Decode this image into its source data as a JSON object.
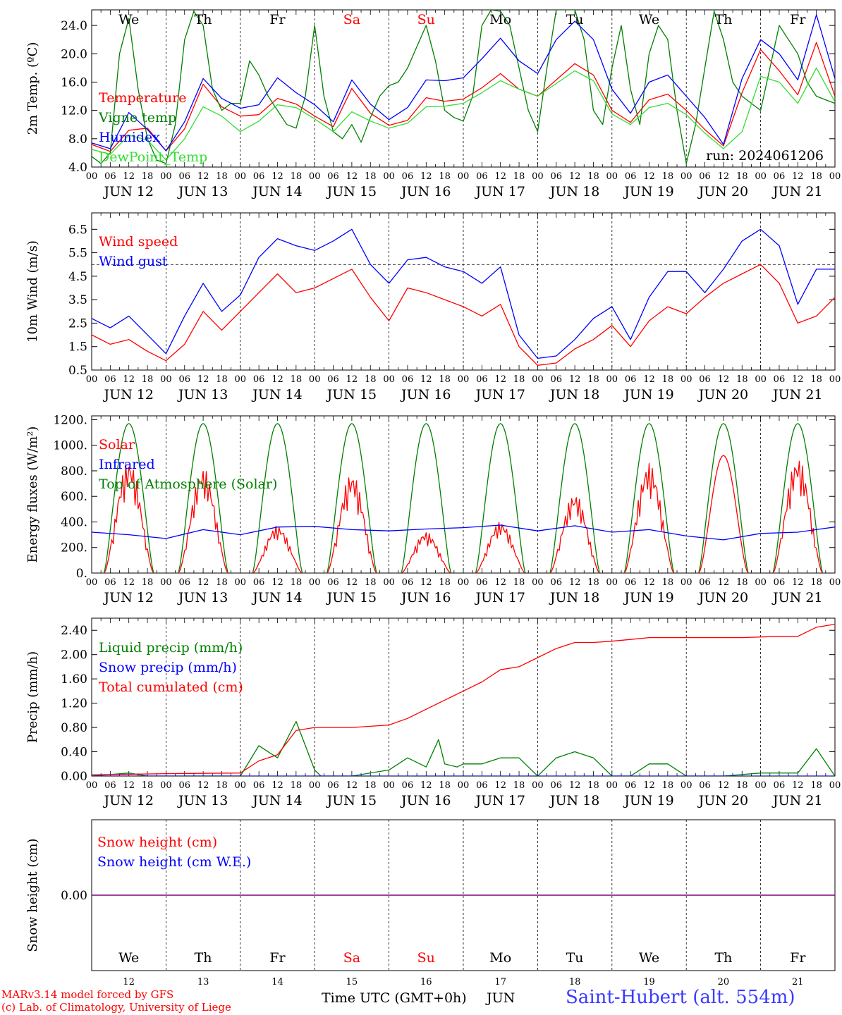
{
  "run_label": "run: 2024061206",
  "days": [
    "We",
    "Th",
    "Fr",
    "Sa",
    "Su",
    "Mo",
    "Tu",
    "We",
    "Th",
    "Fr"
  ],
  "weekend_indices": [
    3,
    4
  ],
  "date_labels": [
    "JUN 12",
    "JUN 13",
    "JUN 14",
    "JUN 15",
    "JUN 16",
    "JUN 17",
    "JUN 18",
    "JUN 19",
    "JUN 20",
    "JUN 21"
  ],
  "hour_ticks": [
    "00",
    "06",
    "12",
    "18"
  ],
  "day_numbers": [
    "12",
    "13",
    "14",
    "15",
    "16",
    "17",
    "18",
    "19",
    "20",
    "21"
  ],
  "colors": {
    "red": "#ff0000",
    "green": "#008000",
    "blue": "#0000ff",
    "lightgreen": "#33dd33",
    "purple": "#800080"
  },
  "footer": {
    "model": "MARv3.14 model forced by GFS",
    "credit": "(c) Lab. of Climatology, University of Liege",
    "xlabel": "Time UTC (GMT+0h)",
    "month": "JUN",
    "station": "Saint-Hubert (alt. 554m)"
  },
  "chart_data": [
    {
      "type": "line",
      "ylabel": "2m Temp. (ºC)",
      "yticks": [
        "4.0",
        "8.0",
        "12.0",
        "16.0",
        "20.0",
        "24.0"
      ],
      "ylim": [
        4,
        26.2
      ],
      "x_unit": "hours from 2024-06-12 00 UTC",
      "series": [
        {
          "name": "Temperature",
          "color": "red",
          "x": [
            0,
            6,
            12,
            18,
            24,
            30,
            36,
            42,
            48,
            54,
            60,
            66,
            72,
            78,
            84,
            90,
            96,
            102,
            108,
            114,
            120,
            126,
            132,
            138,
            144,
            150,
            156,
            162,
            168,
            174,
            180,
            186,
            192,
            198,
            204,
            210,
            216,
            222,
            228,
            234,
            240
          ],
          "y": [
            7.2,
            6.2,
            9.2,
            9.5,
            6.3,
            9.4,
            15.7,
            12.5,
            11.2,
            11.4,
            13.7,
            12.9,
            11.2,
            9.7,
            15.1,
            11.6,
            9.9,
            10.6,
            13.8,
            13.3,
            13.6,
            15.2,
            17.2,
            15.0,
            14.0,
            16.3,
            18.6,
            17.0,
            12.0,
            10.3,
            13.5,
            14.3,
            12.0,
            9.3,
            7.0,
            14.5,
            20.6,
            17.6,
            14.2,
            21.6,
            14.0
          ]
        },
        {
          "name": "Vigne temp",
          "color": "green",
          "x": [
            0,
            3,
            6,
            9,
            12,
            15,
            18,
            21,
            24,
            27,
            30,
            33,
            36,
            39,
            42,
            45,
            48,
            51,
            54,
            57,
            60,
            63,
            66,
            69,
            72,
            75,
            78,
            81,
            84,
            87,
            90,
            93,
            96,
            99,
            102,
            105,
            108,
            111,
            114,
            117,
            120,
            123,
            126,
            129,
            132,
            135,
            138,
            141,
            144,
            147,
            150,
            153,
            156,
            159,
            162,
            165,
            168,
            171,
            174,
            177,
            180,
            183,
            186,
            189,
            192,
            195,
            198,
            201,
            204,
            207,
            210,
            213,
            216,
            219,
            222,
            225,
            228,
            231,
            234,
            237,
            240
          ],
          "y": [
            5.5,
            4.5,
            6.0,
            20.0,
            25.0,
            15.0,
            8.0,
            5.0,
            4.5,
            10.0,
            22.0,
            26.0,
            24.0,
            15.0,
            12.0,
            13.0,
            13.0,
            19.0,
            17.0,
            14.0,
            12.0,
            10.0,
            9.5,
            14.0,
            24.0,
            14.0,
            9.0,
            8.0,
            10.0,
            7.5,
            11.0,
            14.0,
            15.5,
            16.0,
            18.0,
            21.0,
            24.0,
            19.0,
            12.0,
            11.0,
            10.5,
            14.0,
            24.0,
            26.2,
            26.0,
            24.0,
            18.0,
            12.0,
            9.0,
            18.0,
            26.2,
            26.2,
            26.2,
            22.0,
            12.0,
            10.0,
            18.0,
            24.0,
            15.0,
            10.0,
            20.0,
            24.0,
            22.0,
            12.0,
            4.5,
            10.0,
            18.0,
            26.0,
            22.0,
            16.0,
            14.0,
            13.0,
            12.0,
            18.0,
            24.0,
            22.0,
            20.0,
            16.0,
            14.0,
            13.5,
            13.0
          ]
        },
        {
          "name": "Humidex",
          "color": "blue",
          "x": [
            0,
            6,
            12,
            18,
            24,
            30,
            36,
            42,
            48,
            54,
            60,
            66,
            72,
            78,
            84,
            90,
            96,
            102,
            108,
            114,
            120,
            126,
            132,
            138,
            144,
            150,
            156,
            162,
            168,
            174,
            180,
            186,
            192,
            198,
            204,
            210,
            216,
            222,
            228,
            234,
            240
          ],
          "y": [
            7.4,
            6.6,
            11.7,
            9.3,
            6.3,
            10.4,
            16.5,
            13.7,
            12.3,
            12.8,
            16.6,
            14.5,
            12.8,
            10.4,
            16.3,
            12.9,
            10.7,
            12.4,
            16.3,
            16.2,
            16.6,
            19.3,
            22.2,
            19.0,
            17.2,
            22.0,
            24.6,
            22.0,
            15.0,
            11.6,
            16.0,
            17.0,
            14.0,
            11.0,
            7.2,
            16.5,
            22.0,
            20.0,
            16.3,
            25.5,
            16.5
          ]
        },
        {
          "name": "DewPoint_Temp",
          "color": "lightgreen",
          "x": [
            0,
            6,
            12,
            18,
            24,
            30,
            36,
            42,
            48,
            54,
            60,
            66,
            72,
            78,
            84,
            90,
            96,
            102,
            108,
            114,
            120,
            126,
            132,
            138,
            144,
            150,
            156,
            162,
            168,
            174,
            180,
            186,
            192,
            198,
            204,
            210,
            216,
            222,
            228,
            234,
            240
          ],
          "y": [
            6.5,
            5.8,
            8.5,
            7.8,
            5.0,
            8.0,
            12.5,
            11.2,
            9.0,
            10.5,
            12.8,
            12.4,
            10.8,
            9.0,
            11.8,
            10.5,
            9.5,
            10.2,
            12.5,
            12.6,
            13.0,
            14.5,
            16.2,
            15.0,
            14.0,
            15.8,
            17.6,
            16.2,
            11.5,
            10.0,
            12.4,
            13.0,
            11.4,
            8.8,
            6.6,
            9.0,
            16.8,
            16.0,
            13.0,
            18.0,
            13.2
          ]
        }
      ]
    },
    {
      "type": "line",
      "ylabel": "10m Wind (m/s)",
      "yticks": [
        "0.5",
        "1.5",
        "2.5",
        "3.5",
        "4.5",
        "5.5",
        "6.5"
      ],
      "ylim": [
        0.5,
        7.2
      ],
      "reference_line": 5.0,
      "series": [
        {
          "name": "Wind speed",
          "color": "red",
          "x": [
            0,
            6,
            12,
            18,
            24,
            30,
            36,
            42,
            48,
            54,
            60,
            66,
            72,
            78,
            84,
            90,
            96,
            102,
            108,
            114,
            120,
            126,
            132,
            138,
            144,
            150,
            156,
            162,
            168,
            174,
            180,
            186,
            192,
            198,
            204,
            210,
            216,
            222,
            228,
            234,
            240
          ],
          "y": [
            2.0,
            1.6,
            1.8,
            1.3,
            0.9,
            1.6,
            3.0,
            2.2,
            3.0,
            3.8,
            4.6,
            3.8,
            4.0,
            4.4,
            4.8,
            3.6,
            2.6,
            4.0,
            3.8,
            3.5,
            3.2,
            2.8,
            3.3,
            1.5,
            0.7,
            0.8,
            1.4,
            1.8,
            2.4,
            1.5,
            2.6,
            3.2,
            2.9,
            3.6,
            4.2,
            4.6,
            5.0,
            4.2,
            2.5,
            2.8,
            3.6
          ]
        },
        {
          "name": "Wind gust",
          "color": "blue",
          "x": [
            0,
            6,
            12,
            18,
            24,
            30,
            36,
            42,
            48,
            54,
            60,
            66,
            72,
            78,
            84,
            90,
            96,
            102,
            108,
            114,
            120,
            126,
            132,
            138,
            144,
            150,
            156,
            162,
            168,
            174,
            180,
            186,
            192,
            198,
            204,
            210,
            216,
            222,
            228,
            234,
            240
          ],
          "y": [
            2.7,
            2.3,
            2.8,
            2.0,
            1.2,
            2.8,
            4.2,
            3.0,
            3.7,
            5.3,
            6.1,
            5.8,
            5.6,
            6.0,
            6.5,
            5.0,
            4.2,
            5.2,
            5.3,
            4.9,
            4.7,
            4.2,
            4.9,
            2.0,
            1.0,
            1.1,
            1.8,
            2.7,
            3.2,
            1.8,
            3.6,
            4.7,
            4.7,
            3.8,
            4.8,
            6.0,
            6.5,
            5.8,
            3.3,
            4.8,
            4.8
          ]
        }
      ]
    },
    {
      "type": "line",
      "ylabel": "Energy fluxes (W/m²)",
      "yticks": [
        "0.",
        "200.",
        "400.",
        "600.",
        "800.",
        "1000.",
        "1200."
      ],
      "ylim": [
        0,
        1230
      ],
      "series": [
        {
          "name": "Solar",
          "color": "red",
          "daily_peaks": [
            880,
            820,
            370,
            780,
            320,
            400,
            620,
            860,
            920,
            900
          ]
        },
        {
          "name": "Infrared",
          "color": "blue",
          "x": [
            0,
            12,
            24,
            36,
            48,
            60,
            72,
            84,
            96,
            108,
            120,
            132,
            144,
            156,
            168,
            180,
            192,
            204,
            216,
            228,
            240
          ],
          "y": [
            320,
            300,
            270,
            340,
            300,
            360,
            365,
            340,
            330,
            345,
            355,
            375,
            330,
            370,
            320,
            340,
            290,
            260,
            310,
            320,
            360
          ]
        },
        {
          "name": "Top of Atmosphere (Solar)",
          "color": "green",
          "daily_peak": 1170
        }
      ]
    },
    {
      "type": "line",
      "ylabel": "Precip (mm/h)",
      "yticks": [
        "0.00",
        "0.40",
        "0.80",
        "1.20",
        "1.60",
        "2.00",
        "2.40"
      ],
      "ylim": [
        0,
        2.6
      ],
      "series": [
        {
          "name": "Liquid precip (mm/h)",
          "color": "green",
          "x": [
            0,
            12,
            18,
            24,
            48,
            54,
            60,
            66,
            72,
            74,
            78,
            82,
            84,
            96,
            102,
            108,
            112,
            114,
            118,
            120,
            126,
            132,
            138,
            144,
            150,
            156,
            162,
            168,
            174,
            180,
            186,
            192,
            200,
            204,
            216,
            228,
            234,
            240
          ],
          "y": [
            0,
            0.05,
            0,
            0,
            0,
            0.5,
            0.3,
            0.9,
            0.1,
            0,
            0,
            0,
            0,
            0.1,
            0.3,
            0.15,
            0.6,
            0.2,
            0.15,
            0.2,
            0.2,
            0.3,
            0.3,
            0,
            0.3,
            0.4,
            0.3,
            0,
            0,
            0.2,
            0.2,
            0,
            0,
            0,
            0.05,
            0.05,
            0.45,
            0
          ]
        },
        {
          "name": "Snow precip (mm/h)",
          "color": "blue",
          "x": [
            0,
            240
          ],
          "y": [
            0,
            0
          ]
        },
        {
          "name": "Total cumulated (cm)",
          "color": "red",
          "x": [
            0,
            24,
            48,
            54,
            60,
            66,
            72,
            84,
            96,
            102,
            108,
            114,
            120,
            126,
            132,
            138,
            144,
            150,
            156,
            162,
            168,
            174,
            180,
            186,
            192,
            198,
            204,
            210,
            216,
            222,
            228,
            234,
            240
          ],
          "y": [
            0.02,
            0.04,
            0.05,
            0.25,
            0.35,
            0.75,
            0.8,
            0.8,
            0.84,
            0.95,
            1.1,
            1.25,
            1.4,
            1.55,
            1.75,
            1.8,
            1.95,
            2.1,
            2.2,
            2.2,
            2.22,
            2.25,
            2.28,
            2.28,
            2.28,
            2.28,
            2.28,
            2.28,
            2.29,
            2.3,
            2.3,
            2.45,
            2.5
          ]
        }
      ]
    },
    {
      "type": "line",
      "ylabel": "Snow height (cm)",
      "yticks": [
        "0.00"
      ],
      "ylim": [
        -1,
        1
      ],
      "series": [
        {
          "name": "Snow height (cm)",
          "color": "red",
          "x": [
            0,
            240
          ],
          "y": [
            0,
            0
          ]
        },
        {
          "name": "Snow height (cm W.E.)",
          "color": "blue",
          "x": [
            0,
            240
          ],
          "y": [
            0,
            0
          ]
        }
      ]
    }
  ]
}
